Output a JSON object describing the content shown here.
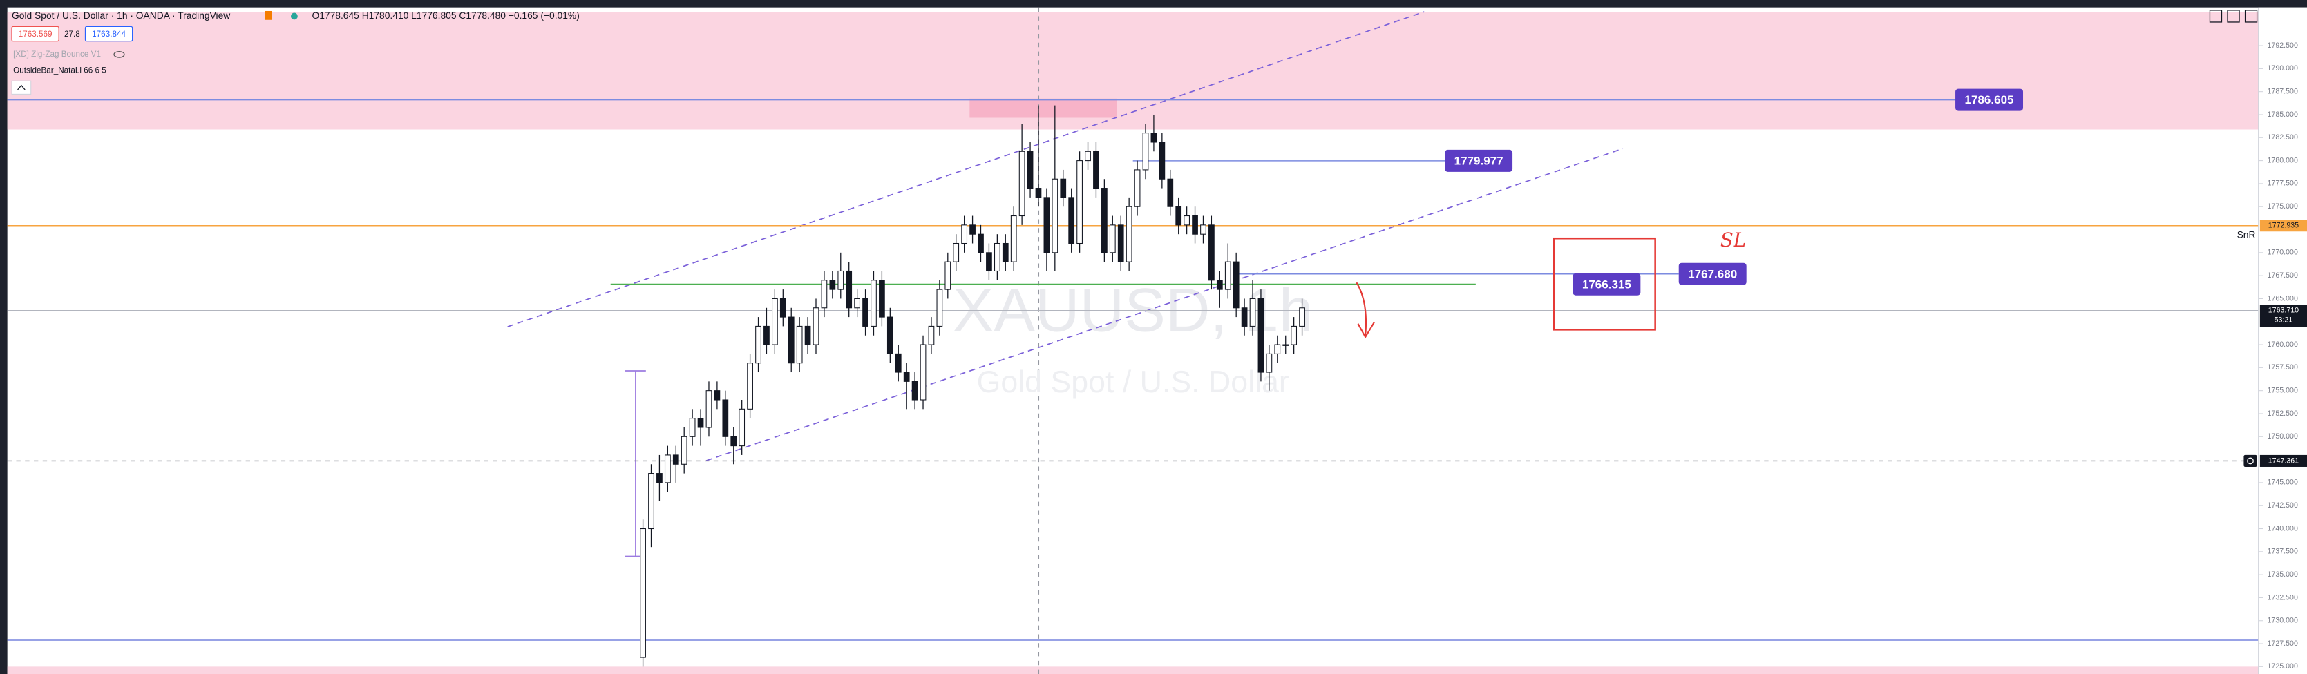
{
  "header": {
    "title": "Gold Spot / U.S. Dollar · 1h · OANDA · TradingView",
    "ohlc": "O1778.645 H1780.410 L1776.805 C1778.480 −0.165 (−0.01%)"
  },
  "indicators": {
    "bid": "1763.569",
    "spread": "27.8",
    "ask": "1763.844",
    "zigzag": "[XD] Zig-Zag Bounce V1",
    "outside_bar": "OutsideBar_NataLi 66 6 5"
  },
  "watermark": {
    "symbol": "XAUUSD, 1h",
    "name": "Gold Spot / U.S. Dollar"
  },
  "annotations": {
    "snr": "SnR",
    "sl": "SL"
  },
  "countdown": "53:21",
  "price_axis": [
    {
      "value": 1792.5,
      "label": "1792.500"
    },
    {
      "value": 1790,
      "label": "1790.000"
    },
    {
      "value": 1787.5,
      "label": "1787.500"
    },
    {
      "value": 1785,
      "label": "1785.000"
    },
    {
      "value": 1782.5,
      "label": "1782.500"
    },
    {
      "value": 1780,
      "label": "1780.000"
    },
    {
      "value": 1777.5,
      "label": "1777.500"
    },
    {
      "value": 1775,
      "label": "1775.000"
    },
    {
      "value": 1770,
      "label": "1770.000"
    },
    {
      "value": 1767.5,
      "label": "1767.500"
    },
    {
      "value": 1765,
      "label": "1765.000"
    },
    {
      "value": 1760,
      "label": "1760.000"
    },
    {
      "value": 1757.5,
      "label": "1757.500"
    },
    {
      "value": 1755,
      "label": "1755.000"
    },
    {
      "value": 1752.5,
      "label": "1752.500"
    },
    {
      "value": 1750,
      "label": "1750.000"
    },
    {
      "value": 1745,
      "label": "1745.000"
    },
    {
      "value": 1742.5,
      "label": "1742.500"
    },
    {
      "value": 1740,
      "label": "1740.000"
    },
    {
      "value": 1737.5,
      "label": "1737.500"
    },
    {
      "value": 1735,
      "label": "1735.000"
    },
    {
      "value": 1732.5,
      "label": "1732.500"
    },
    {
      "value": 1730,
      "label": "1730.000"
    },
    {
      "value": 1727.5,
      "label": "1727.500"
    },
    {
      "value": 1725,
      "label": "1725.000"
    }
  ],
  "levels": {
    "resistance": 1786.605,
    "mid": 1779.977,
    "snr": 1772.935,
    "sl": {
      "value": 1767.68,
      "label": "1767.680"
    },
    "entry": 1766.315,
    "last": {
      "value": 1763.71,
      "label": "1763.710"
    },
    "low": 1747.361
  },
  "candles": [
    [
      1726,
      1741,
      1725,
      1740
    ],
    [
      1740,
      1747,
      1738,
      1746
    ],
    [
      1746,
      1748,
      1743,
      1745
    ],
    [
      1745,
      1749,
      1744,
      1748
    ],
    [
      1748,
      1749,
      1745,
      1747
    ],
    [
      1747,
      1751,
      1746,
      1750
    ],
    [
      1750,
      1753,
      1749,
      1752
    ],
    [
      1752,
      1753,
      1749,
      1751
    ],
    [
      1751,
      1756,
      1750,
      1755
    ],
    [
      1755,
      1756,
      1753,
      1754
    ],
    [
      1754,
      1755,
      1749,
      1750
    ],
    [
      1750,
      1751,
      1747,
      1749
    ],
    [
      1749,
      1754,
      1748,
      1753
    ],
    [
      1753,
      1759,
      1752,
      1758
    ],
    [
      1758,
      1763,
      1757,
      1762
    ],
    [
      1762,
      1764,
      1759,
      1760
    ],
    [
      1760,
      1766,
      1759,
      1765
    ],
    [
      1765,
      1766,
      1762,
      1763
    ],
    [
      1763,
      1764,
      1757,
      1758
    ],
    [
      1758,
      1763,
      1757,
      1762
    ],
    [
      1762,
      1763,
      1759,
      1760
    ],
    [
      1760,
      1765,
      1759,
      1764
    ],
    [
      1764,
      1768,
      1763,
      1767
    ],
    [
      1767,
      1768,
      1765,
      1766
    ],
    [
      1766,
      1770,
      1765,
      1768
    ],
    [
      1768,
      1769,
      1763,
      1764
    ],
    [
      1764,
      1766,
      1763,
      1765
    ],
    [
      1765,
      1766,
      1761,
      1762
    ],
    [
      1762,
      1768,
      1761,
      1767
    ],
    [
      1767,
      1768,
      1762,
      1763
    ],
    [
      1763,
      1764,
      1758,
      1759
    ],
    [
      1759,
      1760,
      1756,
      1757
    ],
    [
      1757,
      1758,
      1753,
      1756
    ],
    [
      1756,
      1757,
      1753,
      1754
    ],
    [
      1754,
      1761,
      1753,
      1760
    ],
    [
      1760,
      1763,
      1759,
      1762
    ],
    [
      1762,
      1767,
      1761,
      1766
    ],
    [
      1766,
      1770,
      1765,
      1769
    ],
    [
      1769,
      1772,
      1768,
      1771
    ],
    [
      1771,
      1774,
      1770,
      1773
    ],
    [
      1773,
      1774,
      1771,
      1772
    ],
    [
      1772,
      1773,
      1769,
      1770
    ],
    [
      1770,
      1771,
      1767,
      1768
    ],
    [
      1768,
      1772,
      1767,
      1771
    ],
    [
      1771,
      1772,
      1768,
      1769
    ],
    [
      1769,
      1775,
      1768,
      1774
    ],
    [
      1774,
      1784,
      1773,
      1781
    ],
    [
      1781,
      1782,
      1776,
      1777
    ],
    [
      1777,
      1786,
      1775,
      1776
    ],
    [
      1776,
      1777,
      1768,
      1770
    ],
    [
      1770,
      1786,
      1768,
      1778
    ],
    [
      1778,
      1779,
      1775,
      1776
    ],
    [
      1776,
      1777,
      1770,
      1771
    ],
    [
      1771,
      1781,
      1770,
      1780
    ],
    [
      1780,
      1782,
      1779,
      1781
    ],
    [
      1781,
      1782,
      1776,
      1777
    ],
    [
      1777,
      1778,
      1769,
      1770
    ],
    [
      1770,
      1774,
      1769,
      1773
    ],
    [
      1773,
      1774,
      1768,
      1769
    ],
    [
      1769,
      1776,
      1768,
      1775
    ],
    [
      1775,
      1780,
      1774,
      1779
    ],
    [
      1779,
      1784,
      1778,
      1783
    ],
    [
      1783,
      1785,
      1781,
      1782
    ],
    [
      1782,
      1783,
      1777,
      1778
    ],
    [
      1778,
      1779,
      1774,
      1775
    ],
    [
      1775,
      1776,
      1772,
      1773
    ],
    [
      1773,
      1775,
      1772,
      1774
    ],
    [
      1774,
      1775,
      1771,
      1772
    ],
    [
      1772,
      1774,
      1771,
      1773
    ],
    [
      1773,
      1774,
      1766,
      1767
    ],
    [
      1767,
      1768,
      1764,
      1766
    ],
    [
      1766,
      1771,
      1765,
      1769
    ],
    [
      1769,
      1770,
      1763,
      1764
    ],
    [
      1764,
      1765,
      1761,
      1762
    ],
    [
      1762,
      1767,
      1761,
      1765
    ],
    [
      1765,
      1766,
      1756,
      1757
    ],
    [
      1757,
      1760,
      1755,
      1759
    ],
    [
      1759,
      1761,
      1758,
      1760
    ],
    [
      1760,
      1761,
      1759,
      1760
    ],
    [
      1760,
      1763,
      1759,
      1762
    ],
    [
      1762,
      1765,
      1761,
      1764
    ]
  ]
}
